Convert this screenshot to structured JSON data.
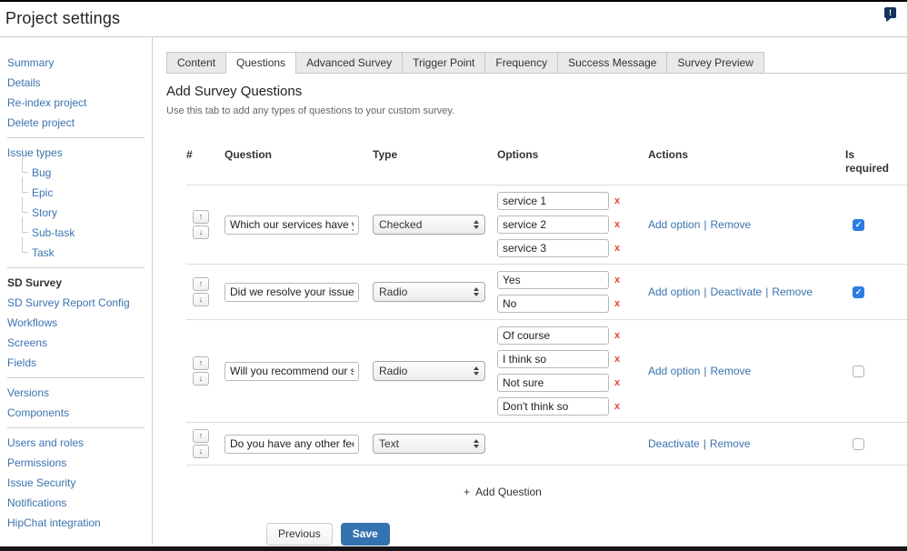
{
  "header": {
    "title": "Project settings",
    "feedback_icon": "!"
  },
  "icons": {
    "up": "↑",
    "down": "↓"
  },
  "sidebar": {
    "items": [
      {
        "label": "Summary"
      },
      {
        "label": "Details"
      },
      {
        "label": "Re-index project"
      },
      {
        "label": "Delete project"
      },
      {
        "label": "Issue types"
      },
      {
        "label": "Bug"
      },
      {
        "label": "Epic"
      },
      {
        "label": "Story"
      },
      {
        "label": "Sub-task"
      },
      {
        "label": "Task"
      },
      {
        "label": "SD Survey"
      },
      {
        "label": "SD Survey Report Config"
      },
      {
        "label": "Workflows"
      },
      {
        "label": "Screens"
      },
      {
        "label": "Fields"
      },
      {
        "label": "Versions"
      },
      {
        "label": "Components"
      },
      {
        "label": "Users and roles"
      },
      {
        "label": "Permissions"
      },
      {
        "label": "Issue Security"
      },
      {
        "label": "Notifications"
      },
      {
        "label": "HipChat integration"
      }
    ]
  },
  "tabs": [
    {
      "label": "Content"
    },
    {
      "label": "Questions"
    },
    {
      "label": "Advanced Survey"
    },
    {
      "label": "Trigger Point"
    },
    {
      "label": "Frequency"
    },
    {
      "label": "Success Message"
    },
    {
      "label": "Survey Preview"
    }
  ],
  "main": {
    "heading": "Add Survey Questions",
    "description": "Use this tab to add any types of questions to your custom survey.",
    "add_question": {
      "icon": "+",
      "label": "Add Question"
    },
    "buttons": {
      "previous": "Previous",
      "save": "Save"
    }
  },
  "table": {
    "headers": {
      "num": "#",
      "question": "Question",
      "type": "Type",
      "options": "Options",
      "actions": "Actions",
      "required": "Is required"
    },
    "labels": {
      "remove_x": "x",
      "separator": "|"
    },
    "rows": [
      {
        "question": "Which our services have you u",
        "type": "Checked",
        "options": [
          "service 1",
          "service 2",
          "service 3"
        ],
        "actions": [
          "Add option",
          "Remove"
        ],
        "required": true
      },
      {
        "question": "Did we resolve your issue?",
        "type": "Radio",
        "options": [
          "Yes",
          "No"
        ],
        "actions": [
          "Add option",
          "Deactivate",
          "Remove"
        ],
        "required": true
      },
      {
        "question": "Will you recommend our servi",
        "type": "Radio",
        "options": [
          "Of course",
          "I think so",
          "Not sure",
          "Don't think so"
        ],
        "actions": [
          "Add option",
          "Remove"
        ],
        "required": false
      },
      {
        "question": "Do you have any other feedba",
        "type": "Text",
        "options": [],
        "actions": [
          "Deactivate",
          "Remove"
        ],
        "required": false
      }
    ]
  },
  "colors": {
    "link": "#3b73af",
    "save_button": "#3572b0",
    "checkbox": "#2a7de1",
    "remove_x": "#e8443a"
  }
}
